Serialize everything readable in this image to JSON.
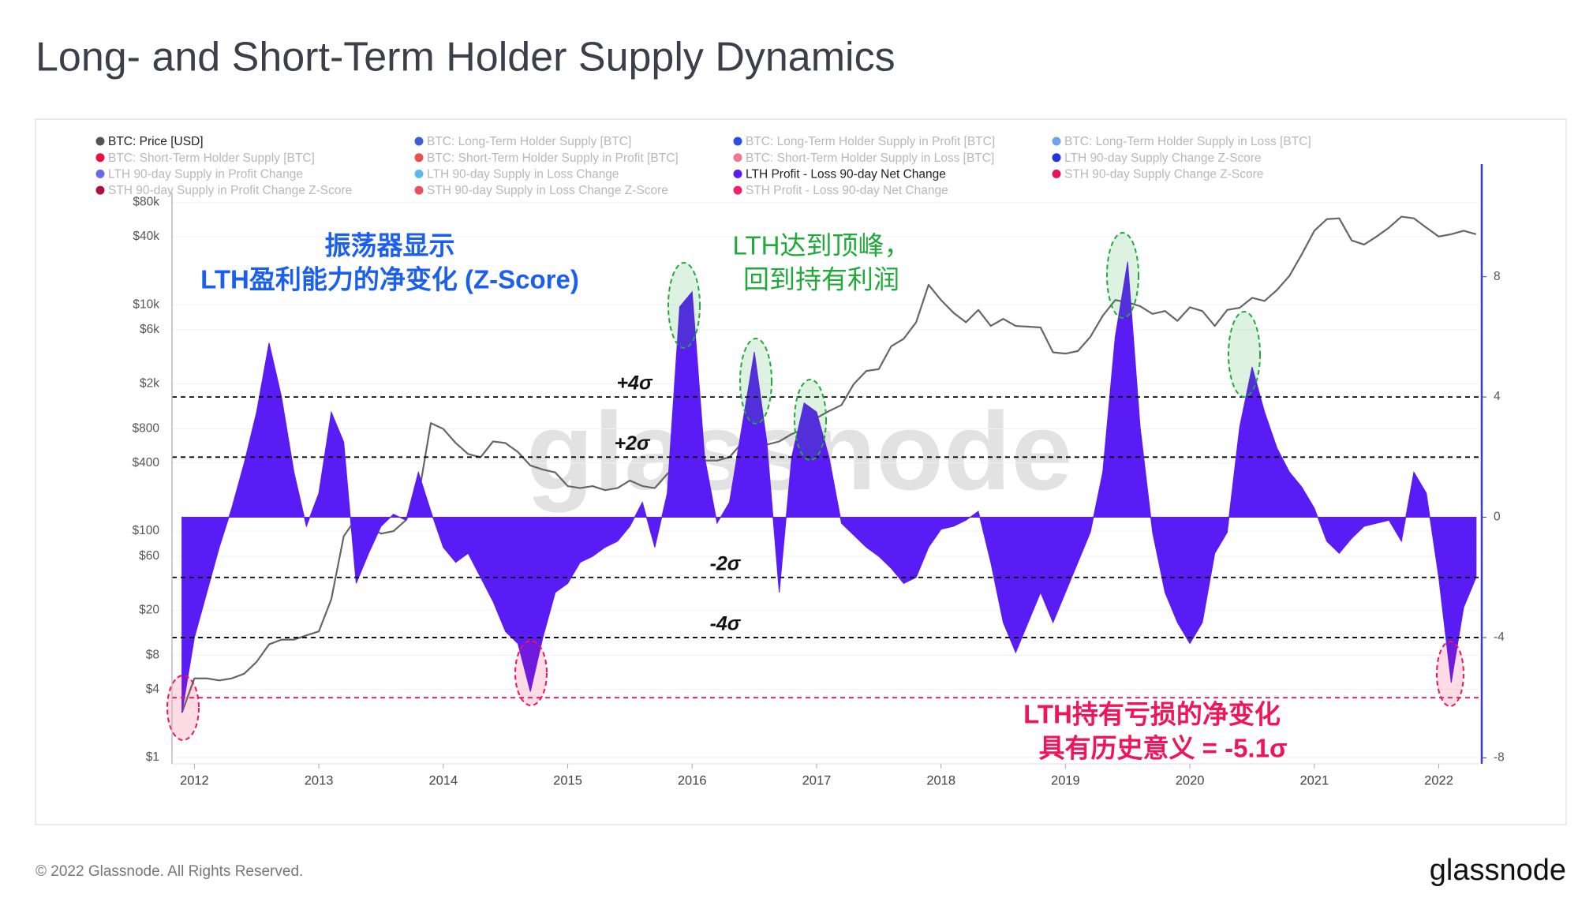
{
  "chart_data": {
    "type": "area",
    "title": "Long- and Short-Term Holder Supply Dynamics",
    "log_y": true,
    "grid": true,
    "x": [
      2011.9,
      2012.0,
      2012.1,
      2012.2,
      2012.3,
      2012.4,
      2012.5,
      2012.6,
      2012.7,
      2012.8,
      2012.9,
      2013.0,
      2013.1,
      2013.2,
      2013.3,
      2013.4,
      2013.5,
      2013.6,
      2013.7,
      2013.8,
      2013.9,
      2014.0,
      2014.1,
      2014.2,
      2014.3,
      2014.4,
      2014.5,
      2014.6,
      2014.7,
      2014.8,
      2014.9,
      2015.0,
      2015.1,
      2015.2,
      2015.3,
      2015.4,
      2015.5,
      2015.6,
      2015.7,
      2015.8,
      2015.9,
      2016.0,
      2016.1,
      2016.2,
      2016.3,
      2016.4,
      2016.5,
      2016.6,
      2016.7,
      2016.8,
      2016.9,
      2017.0,
      2017.1,
      2017.2,
      2017.3,
      2017.4,
      2017.5,
      2017.6,
      2017.7,
      2017.8,
      2017.9,
      2018.0,
      2018.1,
      2018.2,
      2018.3,
      2018.4,
      2018.5,
      2018.6,
      2018.7,
      2018.8,
      2018.9,
      2019.0,
      2019.1,
      2019.2,
      2019.3,
      2019.4,
      2019.5,
      2019.6,
      2019.7,
      2019.8,
      2019.9,
      2020.0,
      2020.1,
      2020.2,
      2020.3,
      2020.4,
      2020.5,
      2020.6,
      2020.7,
      2020.8,
      2020.9,
      2021.0,
      2021.1,
      2021.2,
      2021.3,
      2021.4,
      2021.5,
      2021.6,
      2021.7,
      2021.8,
      2021.9,
      2022.0,
      2022.1,
      2022.2,
      2022.3
    ],
    "xlim": [
      2011.82,
      2022.32
    ],
    "xticks": [
      2012,
      2013,
      2014,
      2015,
      2016,
      2017,
      2018,
      2019,
      2020,
      2021,
      2022
    ],
    "ylim": [
      0.88,
      98000
    ],
    "yticks": [
      {
        "value": 1,
        "label": "$1"
      },
      {
        "value": 4,
        "label": "$4"
      },
      {
        "value": 8,
        "label": "$8"
      },
      {
        "value": 20,
        "label": "$20"
      },
      {
        "value": 60,
        "label": "$60"
      },
      {
        "value": 100,
        "label": "$100"
      },
      {
        "value": 400,
        "label": "$400"
      },
      {
        "value": 800,
        "label": "$800"
      },
      {
        "value": 2000,
        "label": "$2k"
      },
      {
        "value": 6000,
        "label": "$6k"
      },
      {
        "value": 10000,
        "label": "$10k"
      },
      {
        "value": 40000,
        "label": "$40k"
      },
      {
        "value": 80000,
        "label": "$80k"
      }
    ],
    "y2lim": [
      -8.2,
      10.8
    ],
    "y2ticks": [
      -8,
      -4,
      0,
      4,
      8
    ],
    "series": [
      {
        "name": "BTC: Price [USD]",
        "type": "line",
        "color": "#666666",
        "values": [
          2.5,
          5,
          5,
          4.8,
          5,
          5.5,
          7,
          10,
          11,
          11,
          12,
          13,
          25,
          90,
          130,
          110,
          95,
          100,
          125,
          200,
          900,
          800,
          600,
          480,
          450,
          620,
          600,
          500,
          380,
          350,
          330,
          250,
          240,
          250,
          230,
          240,
          280,
          250,
          240,
          320,
          400,
          420,
          420,
          420,
          450,
          600,
          660,
          580,
          620,
          720,
          800,
          1000,
          1150,
          1300,
          2000,
          2600,
          2700,
          4300,
          5000,
          7000,
          15000,
          11000,
          8500,
          7000,
          9000,
          6500,
          7500,
          6500,
          6400,
          6300,
          3800,
          3700,
          3900,
          5200,
          8000,
          11000,
          10500,
          9700,
          8300,
          8800,
          7200,
          9500,
          8800,
          6500,
          9000,
          9400,
          11500,
          10800,
          13500,
          18000,
          28000,
          45000,
          57000,
          58000,
          37000,
          34000,
          40000,
          48000,
          60000,
          58000,
          48000,
          40000,
          42000,
          45000,
          42000
        ]
      },
      {
        "name": "LTH Profit - Loss 90-day Net Change",
        "type": "area",
        "axis": "y2",
        "color": "#5a1cf5",
        "values": [
          -6.5,
          -4,
          -2.5,
          -1,
          0.3,
          1.8,
          3.5,
          5.8,
          4,
          1.5,
          -0.3,
          0.8,
          3.5,
          2.5,
          -2.2,
          -1.2,
          -0.3,
          0.1,
          -0.1,
          1.5,
          0.2,
          -1,
          -1.5,
          -1.2,
          -2,
          -2.8,
          -3.8,
          -4.2,
          -5.8,
          -4,
          -2.5,
          -2.2,
          -1.5,
          -1.3,
          -1,
          -0.8,
          -0.3,
          0.5,
          -1,
          0.8,
          7,
          7.5,
          2,
          -0.2,
          0.5,
          3,
          5.5,
          2.5,
          -2.5,
          2,
          3.8,
          3.5,
          2,
          -0.2,
          -0.6,
          -1,
          -1.3,
          -1.7,
          -2.2,
          -2,
          -1,
          -0.4,
          -0.3,
          -0.1,
          0.2,
          -1.5,
          -3.5,
          -4.5,
          -3.5,
          -2.5,
          -3.5,
          -2.5,
          -1.5,
          -0.5,
          1.5,
          6,
          8.5,
          3,
          -0.5,
          -2.5,
          -3.5,
          -4.2,
          -3.5,
          -1.2,
          -0.5,
          3,
          5,
          3.5,
          2.3,
          1.5,
          1,
          0.3,
          -0.8,
          -1.2,
          -0.7,
          -0.3,
          -0.2,
          -0.1,
          -0.8,
          1.5,
          0.8,
          -2,
          -5.5,
          -3,
          -2
        ]
      }
    ],
    "legend": [
      {
        "name": "BTC: Price [USD]",
        "color": "#555555",
        "active": true
      },
      {
        "name": "BTC: Long-Term Holder Supply [BTC]",
        "color": "#3f5bd8",
        "active": false
      },
      {
        "name": "BTC: Long-Term Holder Supply in Profit [BTC]",
        "color": "#2b4fe0",
        "active": false
      },
      {
        "name": "BTC: Long-Term Holder Supply in Loss [BTC]",
        "color": "#6fa3ef",
        "active": false
      },
      {
        "name": "BTC: Short-Term Holder Supply [BTC]",
        "color": "#e8123c",
        "active": false
      },
      {
        "name": "BTC: Short-Term Holder Supply in Profit [BTC]",
        "color": "#e85050",
        "active": false
      },
      {
        "name": "BTC: Short-Term Holder Supply in Loss [BTC]",
        "color": "#f07890",
        "active": false
      },
      {
        "name": "LTH 90-day Supply Change Z-Score",
        "color": "#2233e0",
        "active": false
      },
      {
        "name": "LTH 90-day Supply in Profit Change",
        "color": "#6a6ae8",
        "active": false
      },
      {
        "name": "LTH 90-day Supply in Loss Change",
        "color": "#5ab8f0",
        "active": false
      },
      {
        "name": "LTH Profit - Loss 90-day Net Change",
        "color": "#5a1cf5",
        "active": true
      },
      {
        "name": "STH 90-day Supply Change Z-Score",
        "color": "#e8125a",
        "active": false
      },
      {
        "name": "STH 90-day Supply in Profit Change Z-Score",
        "color": "#b0103a",
        "active": false
      },
      {
        "name": "STH 90-day Supply in Loss Change Z-Score",
        "color": "#e85060",
        "active": false
      },
      {
        "name": "STH Profit - Loss 90-day Net Change",
        "color": "#f0206a",
        "active": false
      }
    ],
    "reference_lines": [
      {
        "value": 4,
        "label": "+4σ",
        "color": "#000000"
      },
      {
        "value": 2,
        "label": "+2σ",
        "color": "#000000"
      },
      {
        "value": -2,
        "label": "-2σ",
        "color": "#000000"
      },
      {
        "value": -4,
        "label": "-4σ",
        "color": "#000000"
      },
      {
        "value": -6,
        "color": "#f0145a"
      }
    ],
    "annotations": [
      {
        "lines": [
          "振荡器显示",
          "LTH盈利能力的净变化 (Z-Score)"
        ],
        "color": "#1a5ff0"
      },
      {
        "lines": [
          "LTH达到顶峰，",
          "回到持有利润"
        ],
        "color": "#1faa3a"
      },
      {
        "lines": [
          "LTH持有亏损的净变化",
          "具有历史意义 = -5.1σ"
        ],
        "color": "#f0145a"
      }
    ],
    "watermark": "glassnode"
  },
  "footer": {
    "copyright": "© 2022 Glassnode. All Rights Reserved.",
    "logo": "glassnode"
  }
}
